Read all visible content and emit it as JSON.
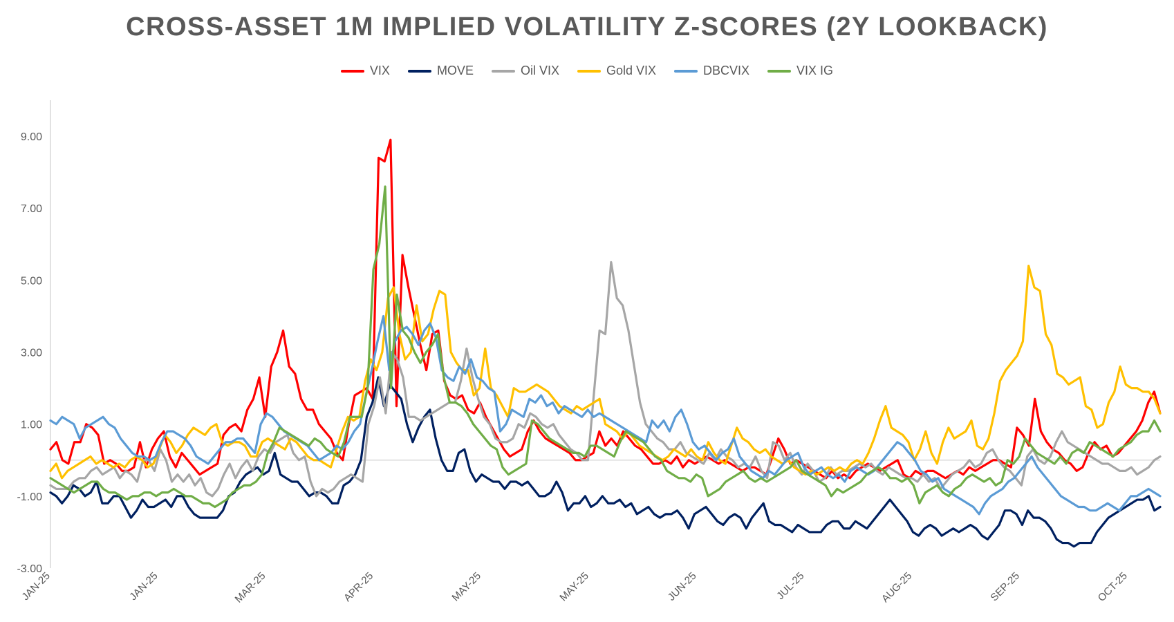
{
  "chart_data": {
    "type": "line",
    "title": "CROSS-ASSET 1M IMPLIED VOLATILITY Z-SCORES (2Y LOOKBACK)",
    "xlabel": "",
    "ylabel": "",
    "ylim": [
      -3.0,
      10.0
    ],
    "yticks": [
      "-3.00",
      "-1.00",
      "1.00",
      "3.00",
      "5.00",
      "7.00",
      "9.00"
    ],
    "x_tick_labels": [
      "JAN-25",
      "JAN-25",
      "MAR-25",
      "APR-25",
      "MAY-25",
      "MAY-25",
      "JUN-25",
      "JUL-25",
      "AUG-25",
      "SEP-25",
      "OCT-25"
    ],
    "grid": false,
    "legend_position": "top",
    "series": [
      {
        "name": "VIX",
        "color": "#FF0000",
        "values": [
          0.3,
          0.5,
          0.0,
          -0.1,
          0.5,
          0.5,
          1.0,
          0.9,
          0.7,
          -0.1,
          0.0,
          -0.1,
          -0.3,
          -0.3,
          -0.2,
          0.5,
          -0.2,
          0.3,
          0.6,
          0.8,
          0.1,
          -0.2,
          0.2,
          0.0,
          -0.2,
          -0.4,
          -0.3,
          -0.2,
          -0.1,
          0.7,
          0.9,
          1.0,
          0.8,
          1.4,
          1.7,
          2.3,
          1.2,
          2.6,
          3.0,
          3.6,
          2.6,
          2.4,
          1.7,
          1.4,
          1.4,
          1.0,
          0.8,
          0.6,
          0.2,
          0.0,
          1.0,
          1.8,
          1.9,
          2.0,
          1.7,
          8.4,
          8.3,
          8.9,
          1.5,
          5.7,
          4.8,
          4.0,
          3.2,
          2.5,
          3.5,
          3.6,
          2.2,
          1.8,
          1.7,
          1.8,
          1.4,
          1.3,
          1.6,
          1.2,
          0.9,
          0.6,
          0.3,
          0.1,
          0.2,
          0.3,
          0.8,
          1.1,
          0.8,
          0.6,
          0.5,
          0.4,
          0.3,
          0.2,
          0.0,
          0.0,
          0.1,
          0.2,
          0.8,
          0.4,
          0.6,
          0.4,
          0.8,
          0.6,
          0.4,
          0.3,
          0.1,
          -0.1,
          -0.1,
          0.0,
          -0.1,
          0.1,
          -0.2,
          0.0,
          -0.1,
          0.0,
          0.1,
          0.0,
          -0.1,
          0.0,
          -0.1,
          -0.2,
          -0.3,
          -0.2,
          -0.2,
          -0.3,
          -0.4,
          0.1,
          0.6,
          0.3,
          -0.1,
          0.0,
          -0.1,
          -0.2,
          -0.3,
          -0.4,
          -0.5,
          -0.3,
          -0.5,
          -0.4,
          -0.5,
          -0.3,
          -0.2,
          -0.1,
          -0.2,
          -0.3,
          -0.2,
          -0.1,
          0.0,
          -0.4,
          -0.5,
          -0.3,
          -0.4,
          -0.3,
          -0.3,
          -0.4,
          -0.5,
          -0.4,
          -0.3,
          -0.4,
          -0.2,
          -0.3,
          -0.2,
          -0.1,
          0.0,
          0.0,
          -0.1,
          -0.2,
          0.9,
          0.7,
          0.4,
          1.7,
          0.8,
          0.5,
          0.3,
          0.2,
          0.0,
          -0.1,
          -0.3,
          -0.2,
          0.2,
          0.5,
          0.3,
          0.4,
          0.1,
          0.2,
          0.4,
          0.6,
          0.8,
          1.1,
          1.6,
          1.9,
          1.3
        ]
      },
      {
        "name": "MOVE",
        "color": "#002060",
        "values": [
          -0.9,
          -1.0,
          -1.2,
          -1.0,
          -0.7,
          -0.8,
          -1.0,
          -0.9,
          -0.6,
          -1.2,
          -1.2,
          -1.0,
          -1.0,
          -1.3,
          -1.6,
          -1.4,
          -1.1,
          -1.3,
          -1.3,
          -1.2,
          -1.1,
          -1.3,
          -1.0,
          -1.0,
          -1.3,
          -1.5,
          -1.6,
          -1.6,
          -1.6,
          -1.6,
          -1.4,
          -1.0,
          -0.9,
          -0.6,
          -0.4,
          -0.3,
          -0.2,
          -0.4,
          -0.3,
          0.2,
          -0.4,
          -0.5,
          -0.6,
          -0.6,
          -0.8,
          -1.0,
          -0.9,
          -0.9,
          -1.0,
          -1.2,
          -1.2,
          -0.7,
          -0.6,
          -0.4,
          0.0,
          1.2,
          1.6,
          2.3,
          1.5,
          2.1,
          1.9,
          1.7,
          1.0,
          0.5,
          0.9,
          1.2,
          1.4,
          0.6,
          0.0,
          -0.3,
          -0.3,
          0.2,
          0.3,
          -0.3,
          -0.6,
          -0.4,
          -0.5,
          -0.6,
          -0.6,
          -0.8,
          -0.6,
          -0.6,
          -0.7,
          -0.6,
          -0.8,
          -1.0,
          -1.0,
          -0.9,
          -0.6,
          -0.9,
          -1.4,
          -1.2,
          -1.2,
          -1.0,
          -1.3,
          -1.2,
          -1.0,
          -1.2,
          -1.2,
          -1.1,
          -1.3,
          -1.2,
          -1.5,
          -1.4,
          -1.3,
          -1.5,
          -1.6,
          -1.5,
          -1.5,
          -1.4,
          -1.6,
          -1.9,
          -1.5,
          -1.4,
          -1.3,
          -1.5,
          -1.7,
          -1.8,
          -1.6,
          -1.5,
          -1.6,
          -1.9,
          -1.6,
          -1.4,
          -1.2,
          -1.7,
          -1.8,
          -1.8,
          -1.9,
          -2.0,
          -1.8,
          -1.9,
          -2.0,
          -2.0,
          -2.0,
          -1.8,
          -1.7,
          -1.7,
          -1.9,
          -1.9,
          -1.7,
          -1.8,
          -1.9,
          -1.7,
          -1.5,
          -1.3,
          -1.1,
          -1.3,
          -1.5,
          -1.7,
          -2.0,
          -2.1,
          -1.9,
          -1.8,
          -1.9,
          -2.1,
          -2.0,
          -1.9,
          -2.0,
          -1.9,
          -1.8,
          -1.9,
          -2.1,
          -2.2,
          -2.0,
          -1.8,
          -1.4,
          -1.4,
          -1.5,
          -1.8,
          -1.4,
          -1.6,
          -1.6,
          -1.7,
          -1.9,
          -2.2,
          -2.3,
          -2.3,
          -2.4,
          -2.3,
          -2.3,
          -2.3,
          -2.0,
          -1.8,
          -1.6,
          -1.5,
          -1.4,
          -1.3,
          -1.2,
          -1.1,
          -1.1,
          -1.0,
          -1.4,
          -1.3
        ]
      },
      {
        "name": "Oil VIX",
        "color": "#A6A6A6",
        "values": [
          -0.7,
          -0.8,
          -0.8,
          -0.8,
          -0.6,
          -0.5,
          -0.5,
          -0.3,
          -0.2,
          -0.4,
          -0.3,
          -0.2,
          -0.5,
          -0.3,
          -0.4,
          -0.6,
          0.0,
          0.0,
          -0.3,
          0.3,
          0.0,
          -0.6,
          -0.4,
          -0.6,
          -0.4,
          -0.7,
          -0.5,
          -0.9,
          -1.0,
          -0.8,
          -0.4,
          -0.1,
          -0.5,
          -0.2,
          0.0,
          -0.3,
          0.1,
          0.3,
          0.2,
          0.5,
          0.6,
          0.7,
          0.2,
          0.0,
          0.1,
          -0.6,
          -1.0,
          -0.8,
          -0.9,
          -0.8,
          -0.6,
          -0.5,
          -0.4,
          -0.5,
          -0.6,
          1.0,
          1.5,
          2.3,
          1.3,
          3.0,
          2.8,
          2.3,
          1.2,
          1.2,
          1.1,
          1.2,
          1.3,
          1.4,
          1.5,
          1.6,
          1.6,
          2.2,
          3.1,
          2.3,
          1.7,
          1.2,
          1.0,
          0.6,
          0.5,
          0.5,
          0.6,
          1.0,
          0.9,
          1.3,
          1.2,
          1.0,
          0.9,
          1.0,
          0.7,
          0.5,
          0.3,
          0.2,
          0.0,
          0.0,
          1.8,
          3.6,
          3.5,
          5.5,
          4.5,
          4.3,
          3.6,
          2.6,
          1.6,
          1.0,
          0.8,
          0.6,
          0.5,
          0.3,
          0.3,
          0.5,
          0.2,
          0.1,
          0.0,
          -0.1,
          0.2,
          0.0,
          0.3,
          0.1,
          0.0,
          -0.2,
          -0.1,
          -0.2,
          0.1,
          -0.3,
          -0.5,
          0.5,
          0.4,
          0.0,
          0.2,
          -0.2,
          -0.4,
          -0.1,
          -0.3,
          -0.6,
          -0.5,
          -0.2,
          -0.4,
          -0.3,
          -0.3,
          -0.2,
          -0.1,
          -0.2,
          -0.1,
          -0.3,
          -0.4,
          -0.2,
          -0.3,
          -0.4,
          -0.5,
          -0.5,
          -0.6,
          -0.4,
          -0.6,
          -0.5,
          -0.8,
          -0.6,
          -0.4,
          -0.3,
          -0.2,
          0.0,
          -0.2,
          -0.1,
          0.2,
          0.3,
          0.0,
          -0.2,
          -0.3,
          -0.5,
          -0.7,
          0.1,
          0.3,
          0.0,
          -0.1,
          0.1,
          0.5,
          0.8,
          0.5,
          0.4,
          0.3,
          0.2,
          0.1,
          0.0,
          -0.1,
          -0.1,
          -0.2,
          -0.3,
          -0.3,
          -0.2,
          -0.4,
          -0.3,
          -0.2,
          0.0,
          0.1
        ]
      },
      {
        "name": "Gold VIX",
        "color": "#FFC000",
        "values": [
          -0.3,
          -0.1,
          -0.5,
          -0.3,
          -0.2,
          -0.1,
          0.0,
          0.1,
          -0.1,
          0.0,
          -0.1,
          -0.2,
          -0.1,
          -0.2,
          0.0,
          0.1,
          0.0,
          -0.2,
          -0.1,
          0.3,
          0.7,
          0.5,
          0.2,
          0.4,
          0.7,
          0.9,
          0.8,
          0.7,
          0.9,
          1.0,
          0.5,
          0.4,
          0.5,
          0.5,
          0.4,
          0.1,
          0.1,
          0.5,
          0.6,
          0.5,
          0.4,
          0.3,
          0.6,
          0.5,
          0.3,
          0.1,
          0.0,
          0.0,
          -0.1,
          -0.2,
          0.3,
          0.8,
          1.2,
          1.1,
          1.2,
          2.2,
          2.8,
          2.5,
          3.0,
          4.5,
          4.8,
          3.5,
          2.8,
          3.0,
          4.3,
          3.3,
          3.5,
          4.2,
          4.7,
          4.6,
          3.0,
          2.7,
          2.5,
          2.5,
          1.8,
          2.0,
          3.1,
          2.0,
          1.8,
          1.5,
          1.2,
          2.0,
          1.9,
          1.9,
          2.0,
          2.1,
          2.0,
          1.9,
          1.7,
          1.5,
          1.4,
          1.3,
          1.5,
          1.4,
          1.5,
          1.6,
          1.7,
          1.0,
          0.9,
          0.8,
          0.6,
          0.8,
          0.6,
          0.4,
          0.3,
          0.2,
          0.1,
          0.0,
          0.1,
          0.3,
          0.2,
          0.1,
          0.3,
          0.1,
          0.0,
          0.5,
          0.2,
          0.0,
          -0.1,
          0.4,
          0.9,
          0.6,
          0.5,
          0.3,
          0.2,
          0.3,
          0.1,
          0.0,
          -0.1,
          0.0,
          -0.2,
          -0.3,
          -0.4,
          -0.3,
          -0.4,
          -0.3,
          -0.2,
          -0.3,
          -0.2,
          -0.3,
          -0.1,
          0.0,
          -0.1,
          0.2,
          0.6,
          1.1,
          1.5,
          0.9,
          0.8,
          0.7,
          0.5,
          0.0,
          0.3,
          0.8,
          0.2,
          -0.1,
          0.5,
          0.9,
          0.6,
          0.7,
          0.8,
          1.1,
          0.4,
          0.3,
          0.6,
          1.3,
          2.2,
          2.5,
          2.7,
          2.9,
          3.3,
          5.4,
          4.8,
          4.7,
          3.5,
          3.2,
          2.4,
          2.3,
          2.1,
          2.2,
          2.3,
          1.5,
          1.4,
          0.9,
          1.0,
          1.6,
          1.9,
          2.6,
          2.1,
          2.0,
          2.0,
          1.9,
          1.9,
          1.7,
          1.3
        ]
      },
      {
        "name": "DBCVIX",
        "color": "#5B9BD5",
        "values": [
          1.1,
          1.0,
          1.2,
          1.1,
          1.0,
          0.6,
          0.9,
          1.0,
          1.1,
          1.2,
          1.0,
          0.9,
          0.6,
          0.4,
          0.2,
          0.1,
          0.1,
          0.0,
          0.1,
          0.5,
          0.8,
          0.8,
          0.7,
          0.6,
          0.4,
          0.1,
          0.0,
          -0.1,
          0.1,
          0.3,
          0.5,
          0.5,
          0.6,
          0.6,
          0.4,
          0.2,
          1.0,
          1.3,
          1.2,
          1.0,
          0.8,
          0.7,
          0.6,
          0.5,
          0.4,
          0.2,
          0.0,
          0.1,
          0.2,
          0.4,
          0.3,
          0.5,
          0.8,
          1.0,
          1.8,
          2.5,
          3.3,
          4.0,
          2.5,
          3.3,
          3.6,
          3.7,
          3.5,
          3.2,
          3.6,
          3.8,
          3.4,
          2.5,
          2.3,
          2.2,
          2.6,
          2.4,
          2.8,
          2.3,
          2.2,
          2.0,
          1.9,
          0.8,
          1.0,
          1.4,
          1.3,
          1.2,
          1.7,
          1.6,
          1.8,
          1.5,
          1.6,
          1.3,
          1.5,
          1.4,
          1.3,
          1.2,
          1.4,
          1.2,
          1.3,
          1.2,
          1.1,
          1.0,
          0.9,
          0.8,
          0.7,
          0.6,
          0.5,
          1.1,
          0.9,
          1.1,
          0.8,
          1.2,
          1.4,
          1.0,
          0.5,
          0.3,
          0.4,
          0.2,
          0.0,
          0.2,
          0.3,
          0.6,
          0.1,
          -0.1,
          -0.3,
          -0.4,
          -0.5,
          -0.3,
          -0.4,
          -0.2,
          0.0,
          0.1,
          0.2,
          -0.2,
          -0.4,
          -0.3,
          -0.2,
          -0.4,
          -0.5,
          -0.4,
          -0.6,
          -0.3,
          -0.2,
          -0.3,
          -0.4,
          -0.3,
          -0.1,
          0.1,
          0.3,
          0.5,
          0.4,
          0.2,
          0.0,
          -0.3,
          -0.4,
          -0.6,
          -0.5,
          -0.8,
          -0.9,
          -1.0,
          -1.1,
          -1.2,
          -1.3,
          -1.5,
          -1.2,
          -1.0,
          -0.9,
          -0.8,
          -0.6,
          -0.5,
          -0.3,
          -0.1,
          0.1,
          -0.2,
          -0.4,
          -0.6,
          -0.8,
          -1.0,
          -1.1,
          -1.2,
          -1.3,
          -1.3,
          -1.4,
          -1.4,
          -1.3,
          -1.2,
          -1.3,
          -1.4,
          -1.2,
          -1.0,
          -1.0,
          -0.9,
          -0.8,
          -0.9,
          -1.0
        ]
      },
      {
        "name": "VIX IG",
        "color": "#70AD47",
        "values": [
          -0.5,
          -0.6,
          -0.7,
          -0.8,
          -0.9,
          -0.8,
          -0.7,
          -0.6,
          -0.6,
          -0.8,
          -0.9,
          -0.9,
          -1.0,
          -1.1,
          -1.0,
          -1.0,
          -0.9,
          -0.9,
          -1.0,
          -0.9,
          -0.9,
          -0.8,
          -0.9,
          -1.0,
          -1.0,
          -1.1,
          -1.2,
          -1.2,
          -1.3,
          -1.2,
          -1.1,
          -0.9,
          -0.8,
          -0.7,
          -0.7,
          -0.6,
          -0.4,
          0.2,
          0.5,
          0.9,
          0.8,
          0.7,
          0.6,
          0.5,
          0.4,
          0.6,
          0.5,
          0.3,
          0.2,
          0.1,
          0.5,
          1.2,
          1.2,
          1.2,
          2.0,
          5.3,
          6.0,
          7.6,
          2.0,
          4.6,
          3.6,
          3.4,
          3.0,
          2.7,
          3.0,
          3.2,
          3.5,
          2.3,
          1.6,
          1.6,
          1.5,
          1.3,
          1.0,
          0.8,
          0.6,
          0.4,
          0.3,
          -0.2,
          -0.4,
          -0.3,
          -0.2,
          -0.1,
          1.1,
          1.0,
          0.8,
          0.6,
          0.5,
          0.4,
          0.3,
          0.2,
          0.2,
          0.1,
          0.4,
          0.4,
          0.3,
          0.2,
          0.1,
          0.5,
          0.8,
          0.7,
          0.6,
          0.5,
          0.3,
          0.1,
          0.0,
          -0.3,
          -0.4,
          -0.5,
          -0.5,
          -0.6,
          -0.4,
          -0.5,
          -1.0,
          -0.9,
          -0.8,
          -0.6,
          -0.5,
          -0.4,
          -0.3,
          -0.5,
          -0.6,
          -0.5,
          -0.6,
          -0.5,
          -0.4,
          -0.3,
          -0.2,
          0.0,
          -0.3,
          -0.4,
          -0.5,
          -0.6,
          -0.7,
          -1.0,
          -0.8,
          -0.9,
          -0.8,
          -0.7,
          -0.6,
          -0.4,
          -0.3,
          -0.2,
          -0.3,
          -0.5,
          -0.5,
          -0.6,
          -0.5,
          -0.7,
          -1.2,
          -0.9,
          -0.8,
          -0.7,
          -0.9,
          -1.0,
          -0.8,
          -0.7,
          -0.5,
          -0.4,
          -0.5,
          -0.6,
          -0.5,
          -0.7,
          -0.6,
          0.0,
          -0.1,
          0.1,
          0.6,
          0.4,
          0.2,
          0.1,
          0.0,
          -0.1,
          0.1,
          -0.1,
          0.2,
          0.3,
          0.2,
          0.5,
          0.4,
          0.3,
          0.2,
          0.1,
          0.3,
          0.4,
          0.5,
          0.7,
          0.8,
          0.8,
          1.1,
          0.8
        ]
      }
    ]
  }
}
